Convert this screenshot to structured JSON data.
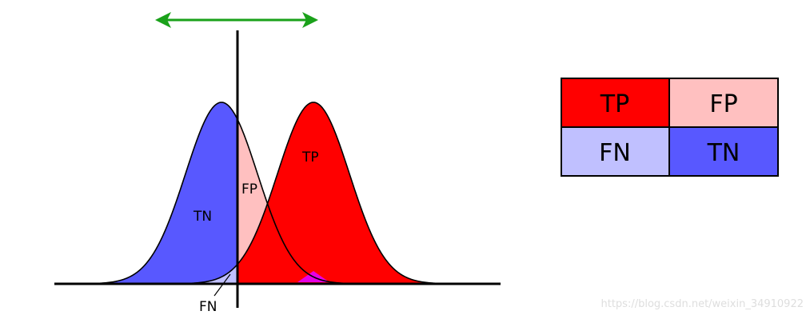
{
  "diagram": {
    "labels": {
      "tn": "TN",
      "fp": "FP",
      "tp": "TP",
      "fn": "FN"
    },
    "matrix": {
      "tp": "TP",
      "fp": "FP",
      "fn": "FN",
      "tn": "TN"
    },
    "colors": {
      "tp": "#ff0000",
      "fp": "#ffc0c0",
      "fn": "#c0c0ff",
      "tn": "#5858ff",
      "overlap": "#e600e6",
      "arrow": "#1aa11a",
      "outline": "#000000"
    }
  },
  "watermark": "https://blog.csdn.net/weixin_34910922"
}
